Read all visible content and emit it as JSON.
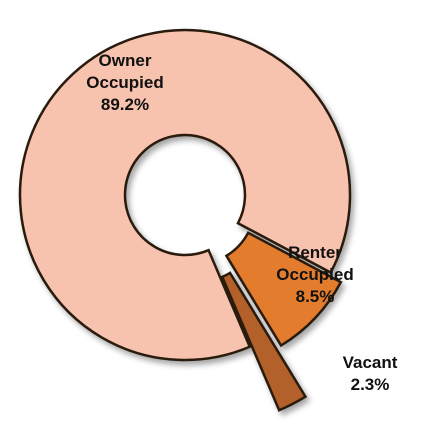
{
  "chart_data": {
    "type": "pie",
    "donut": true,
    "categories": [
      "Owner Occupied",
      "Renter Occupied",
      "Vacant"
    ],
    "values": [
      89.2,
      8.5,
      2.3
    ],
    "value_labels": [
      "89.2%",
      "8.5%",
      "2.3%"
    ],
    "colors": [
      "#f8c3ae",
      "#e47b2d",
      "#b3612a"
    ]
  }
}
